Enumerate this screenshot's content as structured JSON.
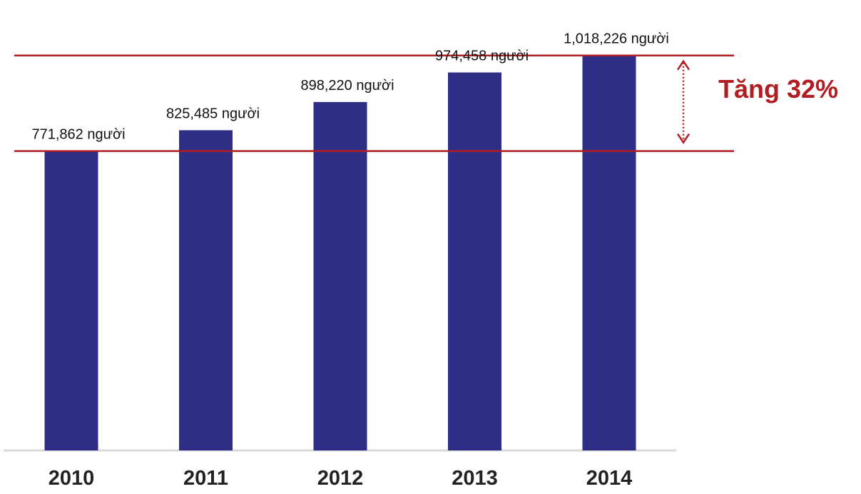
{
  "chart_data": {
    "type": "bar",
    "categories": [
      "2010",
      "2011",
      "2012",
      "2013",
      "2014"
    ],
    "values": [
      771862,
      825485,
      898220,
      974458,
      1018226
    ],
    "data_labels": [
      "771,862 người",
      "825,485 người",
      "898,220 người",
      "974,458 người",
      "1,018,226 người"
    ],
    "title": "",
    "xlabel": "",
    "ylabel": "",
    "ylim": [
      0,
      1060000
    ],
    "grid": false,
    "legend": "none",
    "bar_color": "#2e2e87",
    "reference_lines": [
      771862,
      1018226
    ],
    "reference_line_color": "#b01e23",
    "annotation": {
      "text": "Tăng 32%",
      "from": 771862,
      "to": 1018226,
      "color": "#b01e23"
    }
  }
}
